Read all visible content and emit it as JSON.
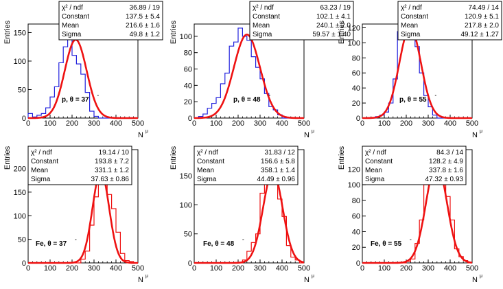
{
  "chart_data": [
    {
      "type": "histogram",
      "label": "p, θ = 37",
      "ylabel": "Entries",
      "xlabel": "N",
      "xlabel_sup": "μ",
      "xlim": [
        0,
        500
      ],
      "ylim": [
        0,
        165
      ],
      "xticks": [
        "0",
        "100",
        "200",
        "300",
        "400",
        "500"
      ],
      "yticks": [
        "0",
        "50",
        "100",
        "150"
      ],
      "hist_color": "#2222dd",
      "fit_color": "#ee1111",
      "bin_start": 0,
      "bin_width": 20,
      "counts": [
        8,
        2,
        5,
        8,
        18,
        37,
        55,
        97,
        125,
        158,
        110,
        95,
        77,
        45,
        12,
        3,
        0,
        0,
        0,
        0,
        0,
        0,
        0,
        0,
        0
      ],
      "fit": {
        "constant": 137.5,
        "mean": 216.6,
        "sigma": 49.8
      },
      "stats": [
        {
          "name": "χ² / ndf",
          "value": "36.89 / 19"
        },
        {
          "name": "Constant",
          "value": "137.5 ± 5.4"
        },
        {
          "name": "Mean",
          "value": "216.6 ± 1.6"
        },
        {
          "name": "Sigma",
          "value": "49.8 ± 1.2"
        }
      ]
    },
    {
      "type": "histogram",
      "label": "p, θ = 48",
      "ylabel": "Entries",
      "xlabel": "N",
      "xlabel_sup": "μ",
      "xlim": [
        0,
        500
      ],
      "ylim": [
        0,
        115
      ],
      "xticks": [
        "0",
        "100",
        "200",
        "300",
        "400",
        "500"
      ],
      "yticks": [
        "0",
        "20",
        "40",
        "60",
        "80",
        "100"
      ],
      "hist_color": "#2222dd",
      "fit_color": "#ee1111",
      "bin_start": 0,
      "bin_width": 20,
      "counts": [
        0,
        2,
        5,
        12,
        18,
        25,
        42,
        55,
        88,
        93,
        110,
        100,
        95,
        75,
        62,
        48,
        30,
        14,
        10,
        4,
        0,
        0,
        0,
        0,
        0
      ],
      "fit": {
        "constant": 102.1,
        "mean": 240.1,
        "sigma": 59.57
      },
      "stats": [
        {
          "name": "χ² / ndf",
          "value": "63.23 / 19"
        },
        {
          "name": "Constant",
          "value": "102.1 ± 4.1"
        },
        {
          "name": "Mean",
          "value": "240.1 ± 2.0"
        },
        {
          "name": "Sigma",
          "value": "59.57 ± 1.40"
        }
      ]
    },
    {
      "type": "histogram",
      "label": "p, θ = 55",
      "ylabel": "Entries",
      "xlabel": "N",
      "xlabel_sup": "μ",
      "xlim": [
        0,
        500
      ],
      "ylim": [
        0,
        125
      ],
      "xticks": [
        "0",
        "100",
        "200",
        "300",
        "400",
        "500"
      ],
      "yticks": [
        "0",
        "20",
        "40",
        "60",
        "80",
        "100",
        "120"
      ],
      "hist_color": "#2222dd",
      "fit_color": "#ee1111",
      "bin_start": 0,
      "bin_width": 20,
      "counts": [
        0,
        0,
        0,
        2,
        4,
        8,
        20,
        52,
        115,
        115,
        118,
        105,
        95,
        60,
        30,
        15,
        4,
        0,
        0,
        0,
        0,
        0,
        0,
        0,
        0
      ],
      "fit": {
        "constant": 120.9,
        "mean": 217.8,
        "sigma": 49.12
      },
      "stats": [
        {
          "name": "χ² / ndf",
          "value": "74.49 / 14"
        },
        {
          "name": "Constant",
          "value": "120.9 ± 5.1"
        },
        {
          "name": "Mean",
          "value": "217.8 ± 2.0"
        },
        {
          "name": "Sigma",
          "value": "49.12 ± 1.27"
        }
      ]
    },
    {
      "type": "histogram",
      "label": "Fe, θ = 37",
      "ylabel": "Entries",
      "xlabel": "N",
      "xlabel_sup": "μ",
      "xlim": [
        0,
        500
      ],
      "ylim": [
        0,
        240
      ],
      "xticks": [
        "0",
        "100",
        "200",
        "300",
        "400",
        "500"
      ],
      "yticks": [
        "0",
        "50",
        "100",
        "150",
        "200"
      ],
      "hist_color": "#ee1111",
      "fit_color": "#ee1111",
      "bin_start": 0,
      "bin_width": 20,
      "counts": [
        0,
        0,
        0,
        0,
        0,
        0,
        0,
        0,
        0,
        0,
        0,
        0,
        8,
        25,
        80,
        140,
        188,
        195,
        145,
        115,
        65,
        20,
        5,
        3,
        0
      ],
      "fit": {
        "constant": 193.8,
        "mean": 331.1,
        "sigma": 37.63
      },
      "stats": [
        {
          "name": "χ² / ndf",
          "value": "19.14 / 10"
        },
        {
          "name": "Constant",
          "value": "193.8 ± 7.2"
        },
        {
          "name": "Mean",
          "value": "331.1 ± 1.2"
        },
        {
          "name": "Sigma",
          "value": "37.63 ± 0.86"
        }
      ]
    },
    {
      "type": "histogram",
      "label": "Fe, θ = 48",
      "ylabel": "Entries",
      "xlabel": "N",
      "xlabel_sup": "μ",
      "xlim": [
        0,
        500
      ],
      "ylim": [
        0,
        195
      ],
      "xticks": [
        "0",
        "100",
        "200",
        "300",
        "400",
        "500"
      ],
      "yticks": [
        "0",
        "50",
        "100",
        "150"
      ],
      "hist_color": "#ee1111",
      "fit_color": "#ee1111",
      "bin_start": 0,
      "bin_width": 20,
      "counts": [
        0,
        0,
        0,
        0,
        0,
        0,
        0,
        0,
        0,
        0,
        0,
        5,
        20,
        35,
        50,
        120,
        140,
        160,
        150,
        110,
        80,
        30,
        10,
        5,
        0
      ],
      "fit": {
        "constant": 156.6,
        "mean": 358.1,
        "sigma": 44.49
      },
      "stats": [
        {
          "name": "χ² / ndf",
          "value": "31.83 / 12"
        },
        {
          "name": "Constant",
          "value": "156.6 ± 5.8"
        },
        {
          "name": "Mean",
          "value": "358.1 ± 1.4"
        },
        {
          "name": "Sigma",
          "value": "44.49 ± 0.96"
        }
      ]
    },
    {
      "type": "histogram",
      "label": "Fe, θ = 55",
      "ylabel": "Entries",
      "xlabel": "N",
      "xlabel_sup": "μ",
      "xlim": [
        0,
        500
      ],
      "ylim": [
        0,
        145
      ],
      "xticks": [
        "0",
        "100",
        "200",
        "300",
        "400",
        "500"
      ],
      "yticks": [
        "0",
        "20",
        "40",
        "60",
        "80",
        "100",
        "120"
      ],
      "hist_color": "#ee1111",
      "fit_color": "#ee1111",
      "bin_start": 0,
      "bin_width": 20,
      "counts": [
        0,
        0,
        0,
        0,
        0,
        0,
        0,
        0,
        0,
        0,
        2,
        5,
        25,
        55,
        100,
        105,
        130,
        135,
        120,
        85,
        55,
        18,
        8,
        3,
        0
      ],
      "fit": {
        "constant": 128.2,
        "mean": 337.8,
        "sigma": 47.32
      },
      "stats": [
        {
          "name": "χ² / ndf",
          "value": "84.3 / 14"
        },
        {
          "name": "Constant",
          "value": "128.2 ± 4.9"
        },
        {
          "name": "Mean",
          "value": "337.8 ± 1.6"
        },
        {
          "name": "Sigma",
          "value": "47.32 ± 0.93"
        }
      ]
    }
  ]
}
